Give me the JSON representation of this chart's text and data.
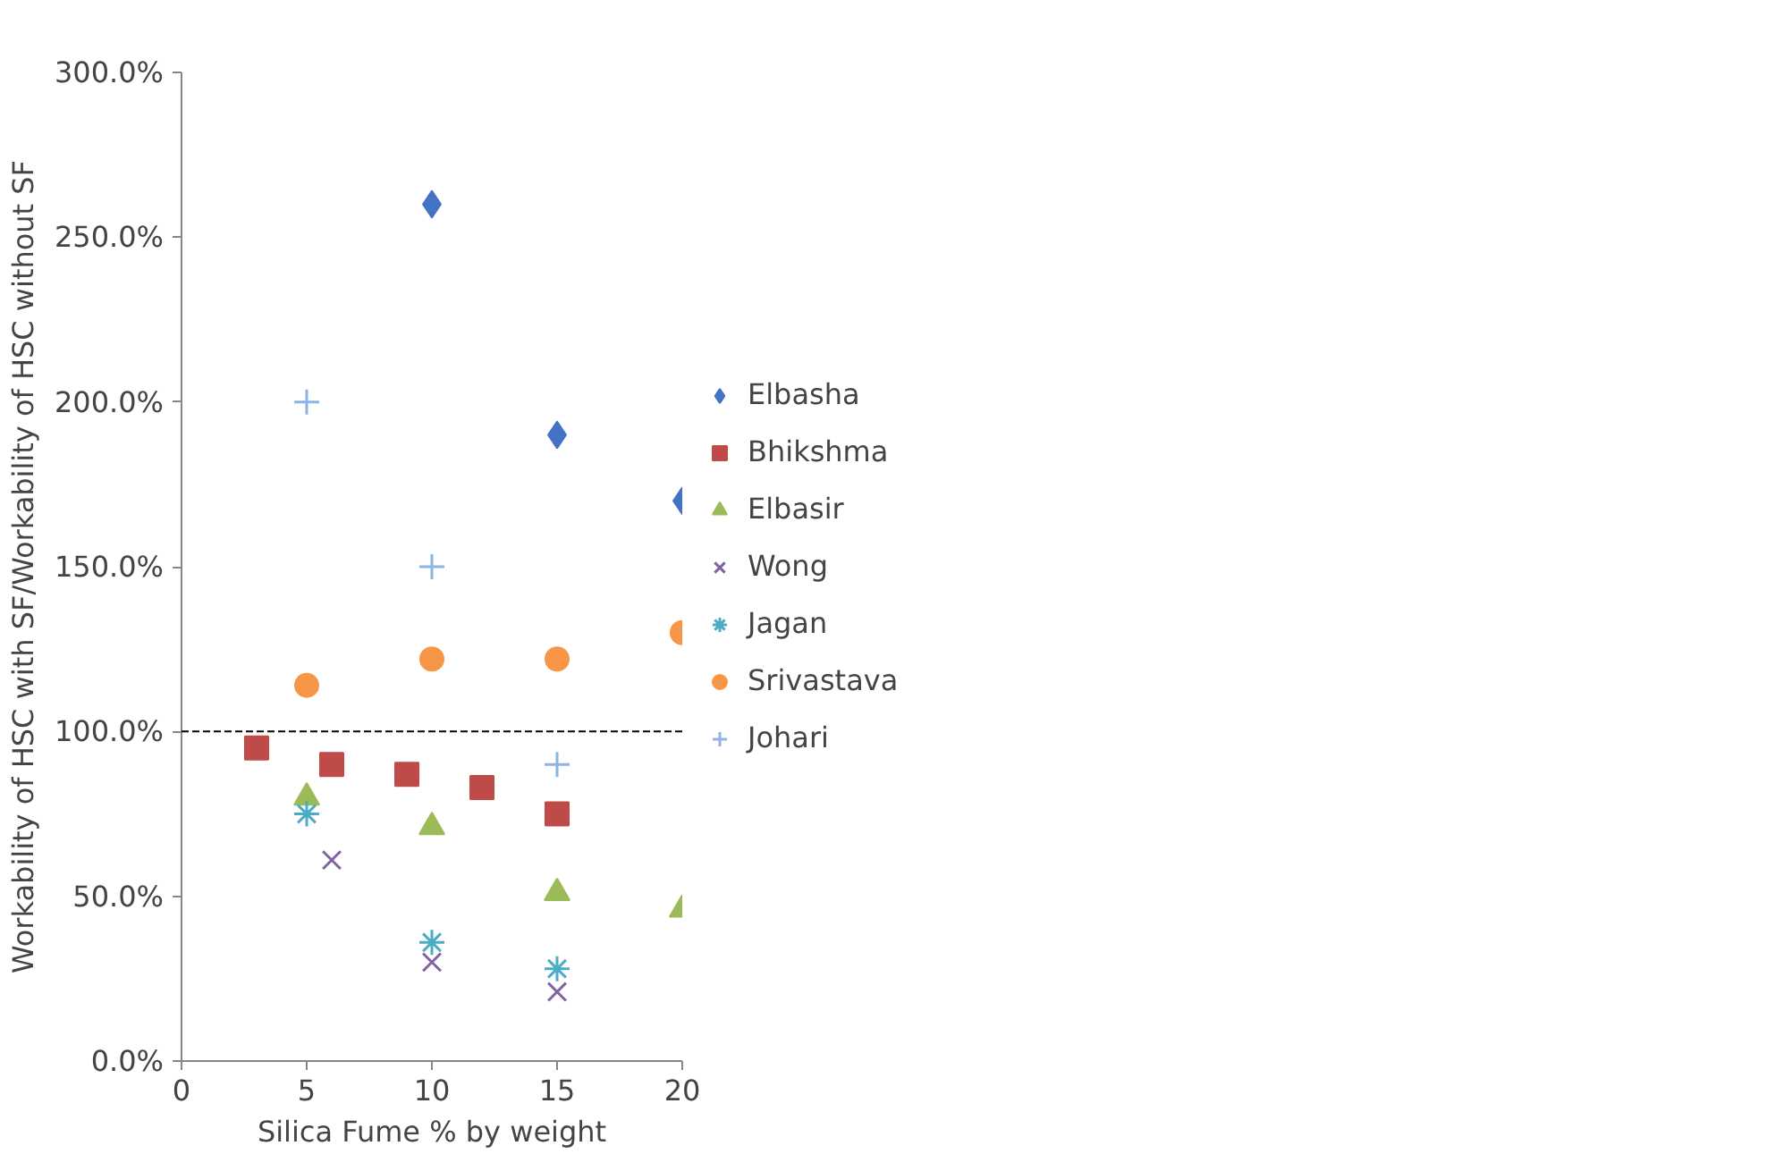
{
  "chart_data": {
    "type": "scatter",
    "xlabel": "Silica Fume % by weight",
    "ylabel": "Workability of HSC with SF/Workability of HSC without SF",
    "xlim": [
      0,
      20
    ],
    "xticks": [
      0,
      5,
      10,
      15,
      20
    ],
    "ylim": [
      0,
      300
    ],
    "yticks": [
      {
        "value": 0,
        "label": "0.0%"
      },
      {
        "value": 50,
        "label": "50.0%"
      },
      {
        "value": 100,
        "label": "100.0%"
      },
      {
        "value": 150,
        "label": "150.0%"
      },
      {
        "value": 200,
        "label": "200.0%"
      },
      {
        "value": 250,
        "label": "250.0%"
      },
      {
        "value": 300,
        "label": "300.0%"
      }
    ],
    "grid": false,
    "legend": "right",
    "ref_lines": [
      {
        "axis": "y",
        "value": 100,
        "color": "#000000",
        "line_style": "dashed"
      }
    ],
    "series": [
      {
        "name": "Elbasha",
        "color": "#4472c4",
        "marker": "diamond",
        "x": [
          10,
          15,
          20
        ],
        "values": [
          260,
          190,
          170
        ]
      },
      {
        "name": "Bhikshma",
        "color": "#be4b48",
        "marker": "square",
        "x": [
          3,
          6,
          9,
          12,
          15
        ],
        "values": [
          95,
          90,
          87,
          83,
          75
        ]
      },
      {
        "name": "Elbasir",
        "color": "#9bbb59",
        "marker": "triangle",
        "x": [
          5,
          10,
          15,
          20
        ],
        "values": [
          80,
          71,
          51,
          46
        ]
      },
      {
        "name": "Wong",
        "color": "#8064a2",
        "marker": "x",
        "x": [
          6,
          10,
          15
        ],
        "values": [
          61,
          30,
          21
        ]
      },
      {
        "name": "Jagan",
        "color": "#4bacc6",
        "x": [
          5,
          10,
          15
        ],
        "values": [
          75,
          36,
          28
        ]
      },
      {
        "name": "Srivastava",
        "color": "#f79646",
        "marker": "circle",
        "x": [
          5,
          10,
          15,
          20
        ],
        "values": [
          114,
          122,
          122,
          130
        ]
      },
      {
        "name": "Johari",
        "color": "#8eb4e3",
        "marker": "cross",
        "x": [
          5,
          10,
          15
        ],
        "values": [
          200,
          150,
          90
        ]
      }
    ]
  }
}
